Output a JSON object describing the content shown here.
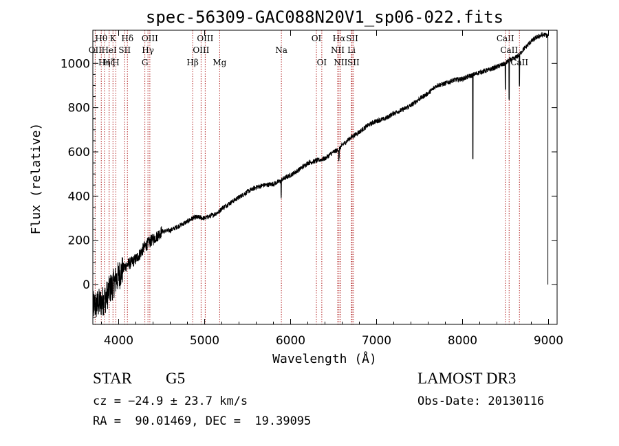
{
  "chart_data": {
    "type": "line",
    "title": "spec-56309-GAC088N20V1_sp06-022.fits",
    "xlabel": "Wavelength (Å)",
    "ylabel": "Flux (relative)",
    "xlim": [
      3700,
      9100
    ],
    "ylim": [
      -180,
      1150
    ],
    "xticks": [
      4000,
      5000,
      6000,
      7000,
      8000,
      9000
    ],
    "yticks": [
      0,
      200,
      400,
      600,
      800,
      1000
    ],
    "grid": false,
    "series": [
      {
        "name": "Flux",
        "x": [
          3700,
          3750,
          3800,
          3850,
          3900,
          3950,
          4000,
          4050,
          4100,
          4150,
          4200,
          4250,
          4300,
          4350,
          4400,
          4450,
          4500,
          4600,
          4700,
          4800,
          4860,
          4900,
          5000,
          5100,
          5170,
          5200,
          5300,
          5400,
          5500,
          5600,
          5700,
          5800,
          5890,
          5900,
          6000,
          6100,
          6200,
          6300,
          6400,
          6500,
          6560,
          6600,
          6700,
          6800,
          6900,
          7000,
          7100,
          7200,
          7300,
          7400,
          7500,
          7600,
          7700,
          7800,
          7900,
          8000,
          8100,
          8200,
          8300,
          8400,
          8500,
          8540,
          8600,
          8660,
          8700,
          8750,
          8800,
          8850,
          8900,
          8950,
          8990
        ],
        "y": [
          -100,
          -90,
          -80,
          -60,
          -20,
          10,
          40,
          70,
          90,
          100,
          115,
          140,
          170,
          190,
          205,
          220,
          240,
          245,
          265,
          285,
          300,
          305,
          300,
          315,
          330,
          345,
          370,
          395,
          420,
          440,
          450,
          455,
          470,
          475,
          495,
          520,
          550,
          560,
          570,
          600,
          610,
          630,
          665,
          690,
          720,
          740,
          750,
          775,
          790,
          810,
          840,
          865,
          900,
          910,
          925,
          930,
          945,
          960,
          970,
          985,
          1000,
          1015,
          1020,
          1040,
          1060,
          1080,
          1100,
          1115,
          1125,
          1130,
          1125
        ]
      }
    ],
    "absorption_features": [
      {
        "x": 8120,
        "depth": 380
      },
      {
        "x": 8498,
        "depth": 120
      },
      {
        "x": 8542,
        "depth": 180
      },
      {
        "x": 8662,
        "depth": 140
      },
      {
        "x": 5890,
        "depth": 70
      },
      {
        "x": 6563,
        "depth": 45
      }
    ],
    "dropout": {
      "x": 8993,
      "to": 0
    },
    "line_markers": [
      {
        "label": "Hθ",
        "x": 3798,
        "row": 0
      },
      {
        "label": "OII",
        "x": 3727,
        "row": 1
      },
      {
        "label": "Hη",
        "x": 3835,
        "row": 2
      },
      {
        "label": "Hζ",
        "x": 3889,
        "row": 2
      },
      {
        "label": "K",
        "x": 3934,
        "row": 0
      },
      {
        "label": "HeI",
        "x": 3889,
        "row": 1
      },
      {
        "label": "H",
        "x": 3968,
        "row": 2
      },
      {
        "label": "Hδ",
        "x": 4102,
        "row": 0
      },
      {
        "label": "SII",
        "x": 4070,
        "row": 1
      },
      {
        "label": "OIII",
        "x": 4363,
        "row": 0
      },
      {
        "label": "Hγ",
        "x": 4341,
        "row": 1
      },
      {
        "label": "G",
        "x": 4305,
        "row": 2
      },
      {
        "label": "OIII",
        "x": 5007,
        "row": 0
      },
      {
        "label": "OIII",
        "x": 4959,
        "row": 1
      },
      {
        "label": "Hβ",
        "x": 4861,
        "row": 2
      },
      {
        "label": "Mg",
        "x": 5175,
        "row": 2
      },
      {
        "label": "Na",
        "x": 5893,
        "row": 1
      },
      {
        "label": "OI",
        "x": 6300,
        "row": 0
      },
      {
        "label": "OI",
        "x": 6363,
        "row": 2
      },
      {
        "label": "Hα",
        "x": 6563,
        "row": 0
      },
      {
        "label": "NII",
        "x": 6548,
        "row": 1
      },
      {
        "label": "NII",
        "x": 6583,
        "row": 2
      },
      {
        "label": "SII",
        "x": 6716,
        "row": 0
      },
      {
        "label": "Li",
        "x": 6708,
        "row": 1
      },
      {
        "label": "SII",
        "x": 6731,
        "row": 2
      },
      {
        "label": "CaII",
        "x": 8498,
        "row": 0
      },
      {
        "label": "CaII",
        "x": 8542,
        "row": 1
      },
      {
        "label": "CaII",
        "x": 8662,
        "row": 2
      }
    ]
  },
  "info": {
    "object_class": "STAR",
    "subclass": "G5",
    "survey": "LAMOST DR3",
    "cz": "cz = −24.9 ± 23.7 km/s",
    "obs_date": "Obs-Date: 20130116",
    "coords": "RA =  90.01469, DEC =  19.39095"
  },
  "colors": {
    "spectrum": "#000000",
    "marker": "#b22222",
    "text": "#000000"
  }
}
